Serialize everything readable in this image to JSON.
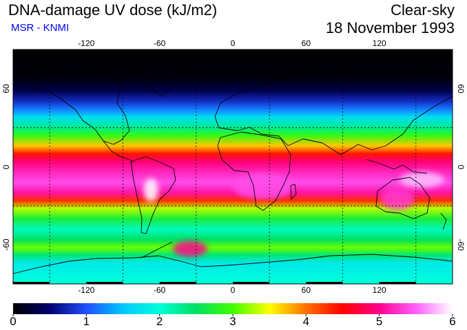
{
  "header": {
    "title": "DNA-damage UV dose (kJ/m2)",
    "source": "MSR - KNMI",
    "condition": "Clear-sky",
    "date": "18 November 1993"
  },
  "colors": {
    "source_text": "#0000ff",
    "grid": "#000000",
    "coastline": "#000000"
  },
  "map": {
    "lon_range": [
      -180,
      180
    ],
    "lat_range": [
      -90,
      90
    ],
    "lon_ticks": [
      "-120",
      "-60",
      "0",
      "60",
      "120"
    ],
    "lon_tick_values": [
      -120,
      -60,
      0,
      60,
      120
    ],
    "lat_ticks": [
      "60",
      "0",
      "-60"
    ],
    "lat_tick_values": [
      60,
      0,
      -60
    ],
    "grid_lon": [
      -150,
      -90,
      -30,
      30,
      90,
      150
    ],
    "grid_lat": [
      30,
      -30
    ]
  },
  "colorbar": {
    "min": 0,
    "max": 6,
    "labels": [
      "0",
      "1",
      "2",
      "3",
      "4",
      "5",
      "6"
    ],
    "stops": [
      {
        "value": 0.0,
        "color": "#000000"
      },
      {
        "value": 0.5,
        "color": "#000070"
      },
      {
        "value": 1.0,
        "color": "#2050ff"
      },
      {
        "value": 1.5,
        "color": "#00c8ff"
      },
      {
        "value": 2.0,
        "color": "#00ffd8"
      },
      {
        "value": 2.5,
        "color": "#00e060"
      },
      {
        "value": 3.0,
        "color": "#40ff00"
      },
      {
        "value": 3.5,
        "color": "#ffff00"
      },
      {
        "value": 4.0,
        "color": "#ff7000"
      },
      {
        "value": 4.5,
        "color": "#ff0000"
      },
      {
        "value": 5.0,
        "color": "#ff0090"
      },
      {
        "value": 5.5,
        "color": "#ff60ff"
      },
      {
        "value": 6.0,
        "color": "#ffffff"
      }
    ]
  },
  "zonal_profile": [
    {
      "lat": 90,
      "value": 0.0
    },
    {
      "lat": 68,
      "value": 0.05
    },
    {
      "lat": 58,
      "value": 0.35
    },
    {
      "lat": 50,
      "value": 0.8
    },
    {
      "lat": 44,
      "value": 1.2
    },
    {
      "lat": 38,
      "value": 1.7
    },
    {
      "lat": 30,
      "value": 2.3
    },
    {
      "lat": 24,
      "value": 2.9
    },
    {
      "lat": 16,
      "value": 3.7
    },
    {
      "lat": 10,
      "value": 4.4
    },
    {
      "lat": 4,
      "value": 4.9
    },
    {
      "lat": -4,
      "value": 5.2
    },
    {
      "lat": -12,
      "value": 5.4
    },
    {
      "lat": -20,
      "value": 5.1
    },
    {
      "lat": -26,
      "value": 4.3
    },
    {
      "lat": -32,
      "value": 3.3
    },
    {
      "lat": -40,
      "value": 2.7
    },
    {
      "lat": -48,
      "value": 2.1
    },
    {
      "lat": -56,
      "value": 2.5
    },
    {
      "lat": -62,
      "value": 3.1
    },
    {
      "lat": -68,
      "value": 2.4
    },
    {
      "lat": -74,
      "value": 1.8
    },
    {
      "lat": -82,
      "value": 1.9
    },
    {
      "lat": -90,
      "value": 2.0
    }
  ],
  "anomalies": [
    {
      "lon": -67,
      "lat": -18,
      "value": 6.0,
      "rlon": 6,
      "rlat": 9
    },
    {
      "lon": -35,
      "lat": -63,
      "value": 5.0,
      "rlon": 14,
      "rlat": 6
    },
    {
      "lon": 155,
      "lat": -10,
      "value": 5.8,
      "rlon": 18,
      "rlat": 6
    },
    {
      "lon": 25,
      "lat": -15,
      "value": 5.4,
      "rlon": 25,
      "rlat": 10
    },
    {
      "lon": 135,
      "lat": -25,
      "value": 5.3,
      "rlon": 14,
      "rlat": 8
    }
  ]
}
